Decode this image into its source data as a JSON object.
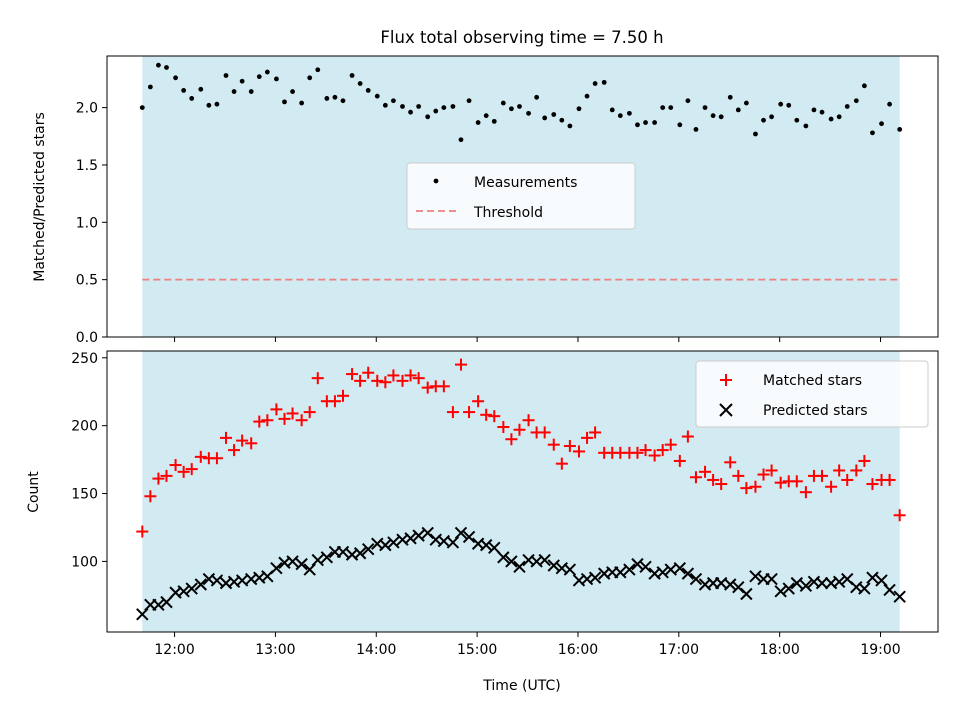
{
  "chart_data": [
    {
      "type": "scatter",
      "title": "Flux total observing time = 7.50 h",
      "ylabel": "Matched/Predicted stars",
      "xlabel": "",
      "ylim": [
        0,
        2.45
      ],
      "xlim": [
        11.33,
        19.57
      ],
      "yticks": [
        0.0,
        0.5,
        1.0,
        1.5,
        2.0
      ],
      "ytick_labels": [
        "0.0",
        "0.5",
        "1.0",
        "1.5",
        "2.0"
      ],
      "grid": false,
      "legend_position": "center",
      "observing_window": [
        11.68,
        19.19
      ],
      "observing_window_color": "#add8e6",
      "series": [
        {
          "name": "Measurements",
          "color": "#000000",
          "marker": "dot",
          "x": [
            11.68,
            11.76,
            11.84,
            11.92,
            12.01,
            12.09,
            12.17,
            12.26,
            12.34,
            12.42,
            12.51,
            12.59,
            12.67,
            12.76,
            12.84,
            12.92,
            13.01,
            13.09,
            13.17,
            13.26,
            13.34,
            13.42,
            13.51,
            13.59,
            13.67,
            13.76,
            13.84,
            13.92,
            14.01,
            14.09,
            14.17,
            14.26,
            14.34,
            14.42,
            14.51,
            14.59,
            14.67,
            14.76,
            14.84,
            14.92,
            15.01,
            15.09,
            15.17,
            15.26,
            15.34,
            15.42,
            15.51,
            15.59,
            15.67,
            15.76,
            15.84,
            15.92,
            16.01,
            16.09,
            16.17,
            16.26,
            16.34,
            16.42,
            16.51,
            16.59,
            16.67,
            16.76,
            16.84,
            16.92,
            17.01,
            17.09,
            17.17,
            17.26,
            17.34,
            17.42,
            17.51,
            17.59,
            17.67,
            17.76,
            17.84,
            17.92,
            18.01,
            18.09,
            18.17,
            18.26,
            18.34,
            18.42,
            18.51,
            18.59,
            18.67,
            18.76,
            18.84,
            18.92,
            19.01,
            19.09,
            19.19
          ],
          "y": [
            2.0,
            2.18,
            2.37,
            2.35,
            2.26,
            2.15,
            2.08,
            2.16,
            2.02,
            2.03,
            2.28,
            2.14,
            2.23,
            2.14,
            2.27,
            2.31,
            2.25,
            2.05,
            2.14,
            2.04,
            2.26,
            2.33,
            2.08,
            2.09,
            2.06,
            2.28,
            2.21,
            2.15,
            2.1,
            2.02,
            2.06,
            2.01,
            1.96,
            2.01,
            1.92,
            1.97,
            2.0,
            2.01,
            1.72,
            2.06,
            1.87,
            1.93,
            1.88,
            2.04,
            1.99,
            2.01,
            1.95,
            2.09,
            1.91,
            1.94,
            1.89,
            1.84,
            1.99,
            2.1,
            2.21,
            2.22,
            1.98,
            1.93,
            1.95,
            1.85,
            1.87,
            1.87,
            2.0,
            2.0,
            1.85,
            2.06,
            1.81,
            2.0,
            1.93,
            1.92,
            2.09,
            1.98,
            2.04,
            1.77,
            1.89,
            1.92,
            2.03,
            2.02,
            1.89,
            1.84,
            1.98,
            1.96,
            1.9,
            1.92,
            2.01,
            2.06,
            2.19,
            1.78,
            1.86,
            2.03,
            1.81
          ]
        },
        {
          "name": "Threshold",
          "color": "#f08080",
          "style": "dashed",
          "y_constant": 0.5
        }
      ]
    },
    {
      "type": "scatter",
      "title": "",
      "ylabel": "Count",
      "xlabel": "Time (UTC)",
      "ylim": [
        48,
        255
      ],
      "xlim": [
        11.33,
        19.57
      ],
      "yticks": [
        100,
        150,
        200,
        250
      ],
      "ytick_labels": [
        "100",
        "150",
        "200",
        "250"
      ],
      "xticks": [
        12,
        13,
        14,
        15,
        16,
        17,
        18,
        19
      ],
      "xtick_labels": [
        "12:00",
        "13:00",
        "14:00",
        "15:00",
        "16:00",
        "17:00",
        "18:00",
        "19:00"
      ],
      "grid": false,
      "legend_position": "top-right",
      "observing_window": [
        11.68,
        19.19
      ],
      "observing_window_color": "#add8e6",
      "series": [
        {
          "name": "Matched stars",
          "color": "#ff0000",
          "marker": "plus",
          "x": [
            11.68,
            11.76,
            11.84,
            11.92,
            12.01,
            12.09,
            12.17,
            12.26,
            12.34,
            12.42,
            12.51,
            12.59,
            12.67,
            12.76,
            12.84,
            12.92,
            13.01,
            13.09,
            13.17,
            13.26,
            13.34,
            13.42,
            13.51,
            13.59,
            13.67,
            13.76,
            13.84,
            13.92,
            14.01,
            14.09,
            14.17,
            14.26,
            14.34,
            14.42,
            14.51,
            14.59,
            14.67,
            14.76,
            14.84,
            14.92,
            15.01,
            15.09,
            15.17,
            15.26,
            15.34,
            15.42,
            15.51,
            15.59,
            15.67,
            15.76,
            15.84,
            15.92,
            16.01,
            16.09,
            16.17,
            16.26,
            16.34,
            16.42,
            16.51,
            16.59,
            16.67,
            16.76,
            16.84,
            16.92,
            17.01,
            17.09,
            17.17,
            17.26,
            17.34,
            17.42,
            17.51,
            17.59,
            17.67,
            17.76,
            17.84,
            17.92,
            18.01,
            18.09,
            18.17,
            18.26,
            18.34,
            18.42,
            18.51,
            18.59,
            18.67,
            18.76,
            18.84,
            18.92,
            19.01,
            19.09,
            19.19
          ],
          "y": [
            122,
            148,
            161,
            163,
            171,
            166,
            168,
            177,
            176,
            176,
            191,
            182,
            189,
            187,
            203,
            204,
            212,
            205,
            209,
            204,
            210,
            235,
            218,
            218,
            222,
            238,
            233,
            239,
            233,
            232,
            237,
            233,
            237,
            235,
            228,
            229,
            229,
            210,
            245,
            210,
            218,
            208,
            207,
            199,
            190,
            197,
            204,
            195,
            195,
            186,
            172,
            185,
            181,
            191,
            195,
            180,
            180,
            180,
            180,
            180,
            182,
            178,
            182,
            186,
            174,
            192,
            162,
            166,
            160,
            157,
            173,
            163,
            154,
            155,
            164,
            167,
            158,
            159,
            159,
            151,
            163,
            163,
            155,
            167,
            160,
            167,
            174,
            157,
            160,
            160,
            134
          ]
        },
        {
          "name": "Predicted stars",
          "color": "#000000",
          "marker": "x",
          "x": [
            11.68,
            11.76,
            11.84,
            11.92,
            12.01,
            12.09,
            12.17,
            12.26,
            12.34,
            12.42,
            12.51,
            12.59,
            12.67,
            12.76,
            12.84,
            12.92,
            13.01,
            13.09,
            13.17,
            13.26,
            13.34,
            13.42,
            13.51,
            13.59,
            13.67,
            13.76,
            13.84,
            13.92,
            14.01,
            14.09,
            14.17,
            14.26,
            14.34,
            14.42,
            14.51,
            14.59,
            14.67,
            14.76,
            14.84,
            14.92,
            15.01,
            15.09,
            15.17,
            15.26,
            15.34,
            15.42,
            15.51,
            15.59,
            15.67,
            15.76,
            15.84,
            15.92,
            16.01,
            16.09,
            16.17,
            16.26,
            16.34,
            16.42,
            16.51,
            16.59,
            16.67,
            16.76,
            16.84,
            16.92,
            17.01,
            17.09,
            17.17,
            17.26,
            17.34,
            17.42,
            17.51,
            17.59,
            17.67,
            17.76,
            17.84,
            17.92,
            18.01,
            18.09,
            18.17,
            18.26,
            18.34,
            18.42,
            18.51,
            18.59,
            18.67,
            18.76,
            18.84,
            18.92,
            19.01,
            19.09,
            19.19
          ],
          "y": [
            61,
            68,
            68,
            70,
            77,
            78,
            80,
            83,
            87,
            86,
            84,
            85,
            86,
            87,
            88,
            89,
            95,
            99,
            100,
            98,
            94,
            101,
            103,
            107,
            107,
            105,
            106,
            109,
            113,
            112,
            114,
            116,
            117,
            119,
            121,
            116,
            115,
            114,
            121,
            118,
            113,
            112,
            110,
            103,
            100,
            96,
            101,
            100,
            101,
            97,
            95,
            94,
            86,
            87,
            88,
            91,
            92,
            92,
            94,
            98,
            96,
            91,
            92,
            94,
            95,
            91,
            87,
            83,
            84,
            84,
            83,
            81,
            76,
            89,
            87,
            87,
            78,
            80,
            84,
            82,
            85,
            84,
            84,
            85,
            87,
            81,
            80,
            88,
            86,
            79,
            74
          ]
        }
      ]
    }
  ]
}
